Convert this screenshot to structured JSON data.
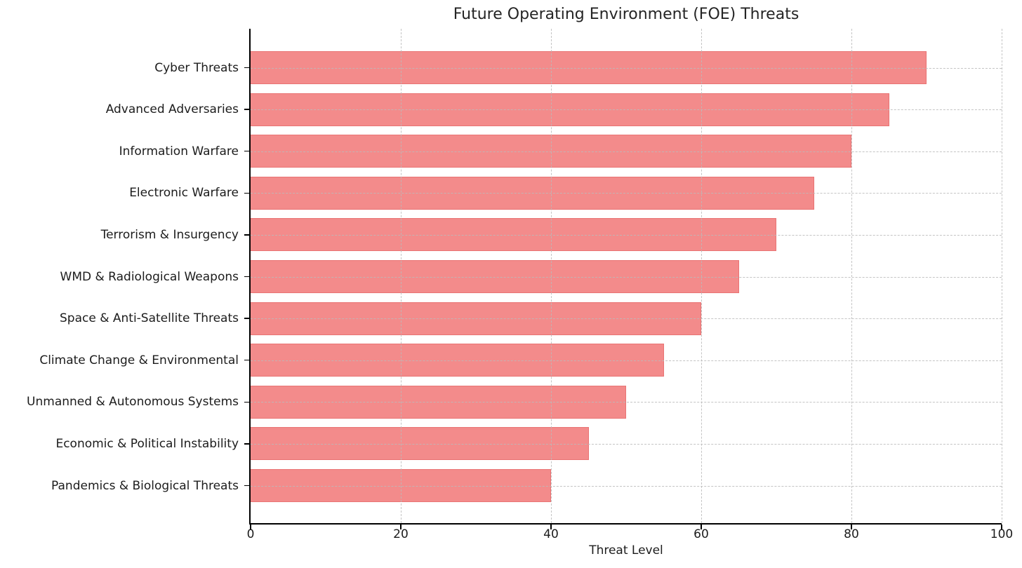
{
  "chart_data": {
    "type": "bar",
    "orientation": "horizontal",
    "title": "Future Operating Environment (FOE) Threats",
    "xlabel": "Threat Level",
    "ylabel": "",
    "categories": [
      "Cyber Threats",
      "Advanced Adversaries",
      "Information Warfare",
      "Electronic Warfare",
      "Terrorism & Insurgency",
      "WMD & Radiological Weapons",
      "Space & Anti-Satellite Threats",
      "Climate Change & Environmental",
      "Unmanned & Autonomous Systems",
      "Economic & Political Instability",
      "Pandemics & Biological Threats"
    ],
    "values": [
      90,
      85,
      80,
      75,
      70,
      65,
      60,
      55,
      50,
      45,
      40
    ],
    "xlim": [
      0,
      100
    ],
    "xticks": [
      0,
      20,
      40,
      60,
      80,
      100
    ],
    "grid": true,
    "grid_style": "dashed",
    "legend": "none",
    "colors": {
      "bar_fill": "#F38B8B",
      "bar_edge": "#E97474",
      "grid": "#BABABA",
      "spine": "#000000",
      "text": "#1c1c1c",
      "background": "#FFFFFF"
    }
  }
}
